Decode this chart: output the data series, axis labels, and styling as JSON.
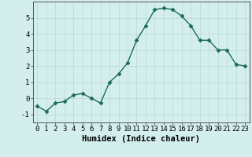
{
  "x": [
    0,
    1,
    2,
    3,
    4,
    5,
    6,
    7,
    8,
    9,
    10,
    11,
    12,
    13,
    14,
    15,
    16,
    17,
    18,
    19,
    20,
    21,
    22,
    23
  ],
  "y": [
    -0.5,
    -0.8,
    -0.3,
    -0.2,
    0.2,
    0.3,
    0.0,
    -0.3,
    1.0,
    1.5,
    2.2,
    3.6,
    4.5,
    5.5,
    5.6,
    5.5,
    5.1,
    4.5,
    3.6,
    3.6,
    3.0,
    3.0,
    2.1,
    2.0
  ],
  "line_color": "#1a6b5a",
  "marker": "D",
  "marker_size": 2.5,
  "linewidth": 1.0,
  "bg_color": "#d4eeee",
  "grid_color": "#b8d8d8",
  "xlabel": "Humidex (Indice chaleur)",
  "ylim": [
    -1.5,
    6.0
  ],
  "xlim": [
    -0.5,
    23.5
  ],
  "yticks": [
    -1,
    0,
    1,
    2,
    3,
    4,
    5
  ],
  "xticks": [
    0,
    1,
    2,
    3,
    4,
    5,
    6,
    7,
    8,
    9,
    10,
    11,
    12,
    13,
    14,
    15,
    16,
    17,
    18,
    19,
    20,
    21,
    22,
    23
  ],
  "xlabel_fontsize": 7.5,
  "tick_fontsize": 6.5
}
